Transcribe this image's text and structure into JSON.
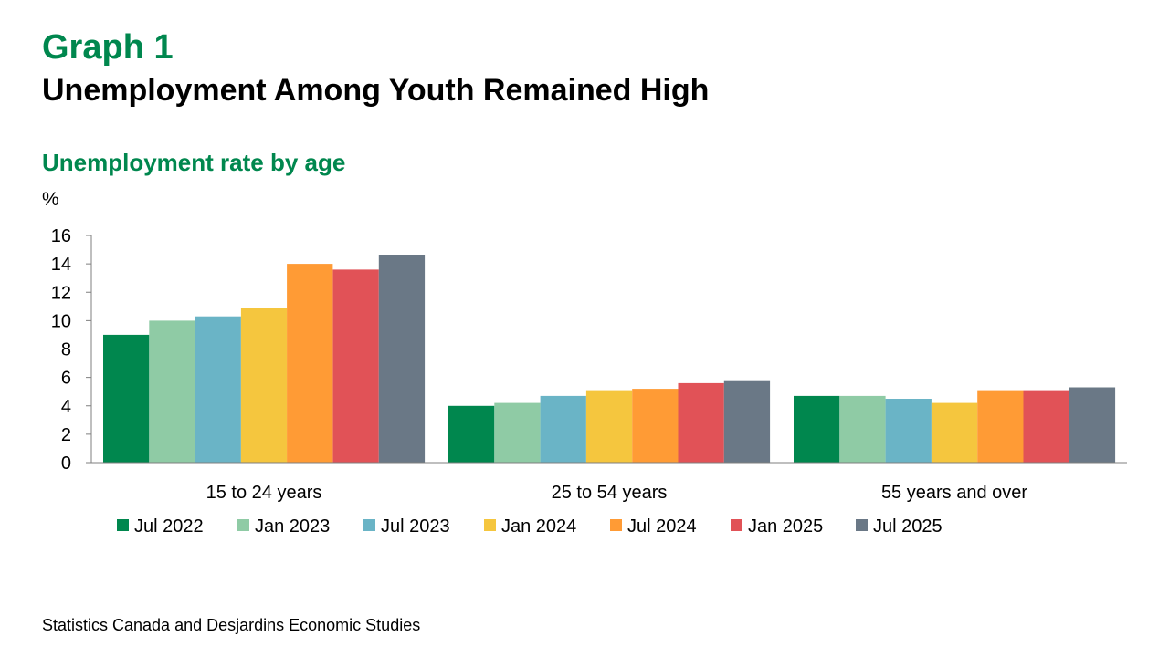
{
  "header": {
    "graph_label": "Graph 1",
    "title": "Unemployment Among Youth Remained High"
  },
  "chart_data": {
    "type": "bar",
    "title": "Unemployment rate by age",
    "ylabel": "%",
    "xlabel": "",
    "ylim": [
      0,
      16
    ],
    "yticks": [
      0,
      2,
      4,
      6,
      8,
      10,
      12,
      14,
      16
    ],
    "grid": false,
    "legend_position": "bottom",
    "categories": [
      "15 to 24 years",
      "25 to 54 years",
      "55 years and over"
    ],
    "series": [
      {
        "name": "Jul 2022",
        "color": "#00874E",
        "values": [
          9.0,
          4.0,
          4.7
        ]
      },
      {
        "name": "Jan 2023",
        "color": "#8FCBA5",
        "values": [
          10.0,
          4.2,
          4.7
        ]
      },
      {
        "name": "Jul 2023",
        "color": "#6AB4C6",
        "values": [
          10.3,
          4.7,
          4.5
        ]
      },
      {
        "name": "Jan 2024",
        "color": "#F5C63E",
        "values": [
          10.9,
          5.1,
          4.2
        ]
      },
      {
        "name": "Jul 2024",
        "color": "#FF9B35",
        "values": [
          14.0,
          5.2,
          5.1
        ]
      },
      {
        "name": "Jan 2025",
        "color": "#E15257",
        "values": [
          13.6,
          5.6,
          5.1
        ]
      },
      {
        "name": "Jul 2025",
        "color": "#6A7886",
        "values": [
          14.6,
          5.8,
          5.3
        ]
      }
    ]
  },
  "footer": {
    "source": "Statistics Canada and Desjardins Economic Studies"
  }
}
